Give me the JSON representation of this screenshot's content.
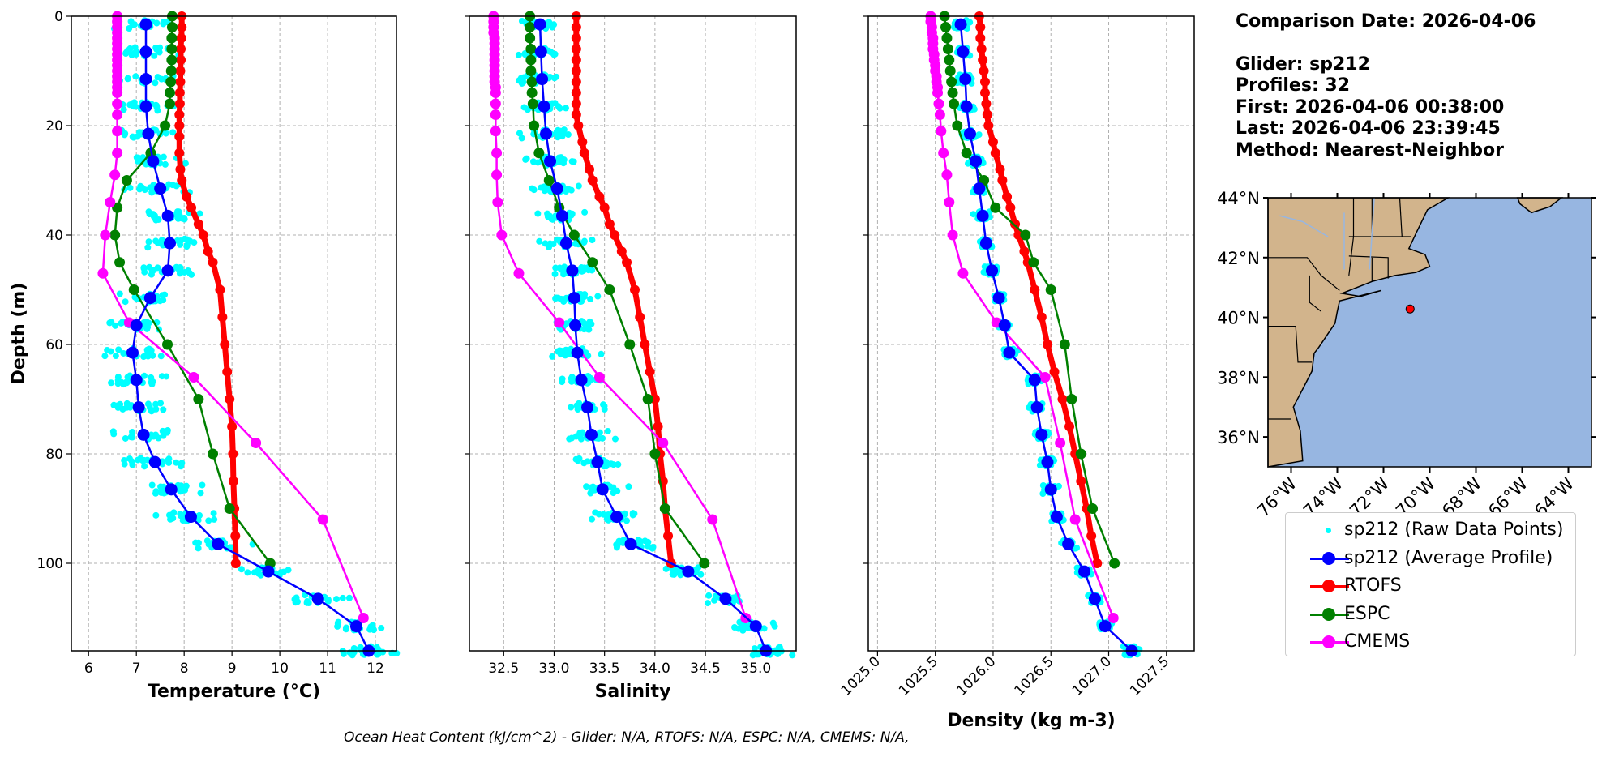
{
  "info": {
    "comparison_date": "Comparison Date: 2026-04-06",
    "glider": "Glider: sp212",
    "profiles": "Profiles: 32",
    "first": "First: 2026-04-06 00:38:00",
    "last": "Last: 2026-04-06 23:39:45",
    "method": "Method: Nearest-Neighbor"
  },
  "footer": "Ocean Heat Content (kJ/cm^2) - Glider: N/A,  RTOFS: N/A,  ESPC: N/A,  CMEMS: N/A,",
  "colors": {
    "raw": "#00ffff",
    "glider": "#0000ff",
    "rtofs": "#ff0000",
    "espc": "#008000",
    "cmems": "#ff00ff",
    "land": "#d2b48c",
    "ocean": "#97b6e1"
  },
  "legend": [
    {
      "key": "raw",
      "label": "sp212 (Raw Data Points)"
    },
    {
      "key": "glider",
      "label": "sp212 (Average Profile)"
    },
    {
      "key": "rtofs",
      "label": "RTOFS"
    },
    {
      "key": "espc",
      "label": "ESPC"
    },
    {
      "key": "cmems",
      "label": "CMEMS"
    }
  ],
  "chart_data": [
    {
      "type": "line",
      "id": "temperature",
      "xlabel": "Temperature (°C)",
      "ylabel": "Depth (m)",
      "xlim": [
        5.64,
        12.44
      ],
      "ylim": [
        116,
        0
      ],
      "xticks": [
        6,
        7,
        8,
        9,
        10,
        11,
        12
      ],
      "yticks": [
        0,
        20,
        40,
        60,
        80,
        100
      ],
      "grid": true,
      "series": [
        {
          "name": "sp212 (Average Profile)",
          "key": "glider",
          "depth": [
            1.5,
            6.5,
            11.5,
            16.5,
            21.5,
            26.5,
            31.5,
            36.5,
            41.5,
            46.5,
            51.5,
            56.5,
            61.5,
            66.5,
            71.5,
            76.5,
            81.5,
            86.5,
            91.5,
            96.5,
            101.5,
            106.5,
            111.5,
            116
          ],
          "values": [
            7.2,
            7.2,
            7.2,
            7.2,
            7.25,
            7.35,
            7.5,
            7.66,
            7.7,
            7.66,
            7.29,
            7.0,
            6.92,
            7.0,
            7.05,
            7.15,
            7.39,
            7.73,
            8.14,
            8.71,
            9.76,
            10.8,
            11.6,
            11.86
          ]
        },
        {
          "name": "RTOFS",
          "key": "rtofs",
          "depth": [
            0,
            2,
            4,
            6,
            8,
            10,
            12,
            14,
            16,
            18,
            20,
            22,
            25,
            28,
            30,
            33,
            35,
            38,
            40,
            43,
            45,
            50,
            55,
            60,
            65,
            70,
            75,
            80,
            85,
            90,
            95,
            100
          ],
          "values": [
            7.95,
            7.95,
            7.94,
            7.93,
            7.93,
            7.92,
            7.92,
            7.91,
            7.91,
            7.9,
            7.9,
            7.9,
            7.9,
            7.92,
            7.95,
            8.05,
            8.15,
            8.3,
            8.4,
            8.5,
            8.6,
            8.75,
            8.8,
            8.85,
            8.9,
            8.95,
            9.0,
            9.02,
            9.03,
            9.05,
            9.07,
            9.08
          ]
        },
        {
          "name": "ESPC",
          "key": "espc",
          "depth": [
            0,
            2,
            4,
            6,
            8,
            10,
            12,
            14,
            16,
            20,
            25,
            30,
            35,
            40,
            45,
            50,
            60,
            70,
            80,
            90,
            100
          ],
          "values": [
            7.75,
            7.75,
            7.74,
            7.74,
            7.74,
            7.73,
            7.72,
            7.7,
            7.7,
            7.6,
            7.3,
            6.8,
            6.6,
            6.55,
            6.65,
            6.95,
            7.65,
            8.3,
            8.6,
            8.95,
            9.8
          ]
        },
        {
          "name": "CMEMS",
          "key": "cmems",
          "depth": [
            0,
            1,
            2,
            3,
            4,
            5,
            6,
            7,
            8,
            9,
            10,
            11,
            12,
            13,
            14,
            16,
            18,
            21,
            25,
            29,
            34,
            40,
            47,
            56,
            66,
            78,
            92,
            110
          ],
          "values": [
            6.6,
            6.6,
            6.6,
            6.6,
            6.6,
            6.6,
            6.6,
            6.6,
            6.6,
            6.6,
            6.6,
            6.6,
            6.6,
            6.6,
            6.6,
            6.6,
            6.6,
            6.6,
            6.6,
            6.55,
            6.45,
            6.35,
            6.3,
            6.85,
            8.2,
            9.5,
            10.9,
            11.75
          ]
        }
      ]
    },
    {
      "type": "line",
      "id": "salinity",
      "xlabel": "Salinity",
      "xlim": [
        32.16,
        35.4
      ],
      "ylim": [
        116,
        0
      ],
      "xticks": [
        32.5,
        33.0,
        33.5,
        34.0,
        34.5,
        35.0
      ],
      "grid": true,
      "series": [
        {
          "name": "sp212 (Average Profile)",
          "key": "glider",
          "depth": [
            1.5,
            6.5,
            11.5,
            16.5,
            21.5,
            26.5,
            31.5,
            36.5,
            41.5,
            46.5,
            51.5,
            56.5,
            61.5,
            66.5,
            71.5,
            76.5,
            81.5,
            86.5,
            91.5,
            96.5,
            101.5,
            106.5,
            111.5,
            116
          ],
          "values": [
            32.86,
            32.87,
            32.88,
            32.9,
            32.92,
            32.96,
            33.03,
            33.08,
            33.12,
            33.18,
            33.2,
            33.21,
            33.23,
            33.27,
            33.33,
            33.37,
            33.43,
            33.48,
            33.62,
            33.76,
            34.33,
            34.7,
            35.0,
            35.1
          ]
        },
        {
          "name": "RTOFS",
          "key": "rtofs",
          "depth": [
            0,
            2,
            4,
            6,
            8,
            10,
            12,
            14,
            16,
            18,
            20,
            23,
            25,
            28,
            30,
            33,
            35,
            38,
            40,
            43,
            45,
            50,
            55,
            60,
            65,
            70,
            75,
            80,
            85,
            90,
            95,
            100
          ],
          "values": [
            33.22,
            33.22,
            33.22,
            33.22,
            33.22,
            33.22,
            33.22,
            33.22,
            33.22,
            33.22,
            33.24,
            33.28,
            33.3,
            33.35,
            33.38,
            33.45,
            33.5,
            33.55,
            33.6,
            33.67,
            33.72,
            33.8,
            33.85,
            33.9,
            33.95,
            34.0,
            34.03,
            34.05,
            34.08,
            34.1,
            34.13,
            34.16
          ]
        },
        {
          "name": "ESPC",
          "key": "espc",
          "depth": [
            0,
            2,
            4,
            6,
            8,
            10,
            12,
            14,
            16,
            20,
            25,
            30,
            35,
            40,
            45,
            50,
            60,
            70,
            80,
            90,
            100
          ],
          "values": [
            32.76,
            32.76,
            32.76,
            32.77,
            32.77,
            32.77,
            32.78,
            32.78,
            32.79,
            32.8,
            32.85,
            32.95,
            33.05,
            33.2,
            33.38,
            33.55,
            33.75,
            33.93,
            34.0,
            34.1,
            34.49
          ]
        },
        {
          "name": "CMEMS",
          "key": "cmems",
          "depth": [
            0,
            1,
            2,
            3,
            4,
            5,
            6,
            7,
            8,
            9,
            10,
            11,
            12,
            13,
            14,
            16,
            18,
            21,
            25,
            29,
            34,
            40,
            47,
            56,
            66,
            78,
            92,
            110
          ],
          "values": [
            32.4,
            32.4,
            32.4,
            32.4,
            32.41,
            32.41,
            32.41,
            32.41,
            32.41,
            32.41,
            32.41,
            32.41,
            32.41,
            32.42,
            32.42,
            32.42,
            32.42,
            32.42,
            32.43,
            32.43,
            32.44,
            32.48,
            32.65,
            33.05,
            33.45,
            34.08,
            34.57,
            34.9
          ]
        }
      ]
    },
    {
      "type": "line",
      "id": "density",
      "xlabel": "Density (kg m-3)",
      "xlim": [
        1024.92,
        1027.74
      ],
      "ylim": [
        116,
        0
      ],
      "xticks": [
        1025.0,
        1025.5,
        1026.0,
        1026.5,
        1027.0,
        1027.5
      ],
      "grid": true,
      "series": [
        {
          "name": "sp212 (Average Profile)",
          "key": "glider",
          "depth": [
            1.5,
            6.5,
            11.5,
            16.5,
            21.5,
            26.5,
            31.5,
            36.5,
            41.5,
            46.5,
            51.5,
            56.5,
            61.5,
            66.5,
            71.5,
            76.5,
            81.5,
            86.5,
            91.5,
            96.5,
            101.5,
            106.5,
            111.5,
            116
          ],
          "values": [
            1025.72,
            1025.74,
            1025.76,
            1025.77,
            1025.8,
            1025.85,
            1025.88,
            1025.91,
            1025.94,
            1025.99,
            1026.05,
            1026.1,
            1026.14,
            1026.36,
            1026.38,
            1026.42,
            1026.47,
            1026.5,
            1026.55,
            1026.65,
            1026.79,
            1026.88,
            1026.97,
            1027.2
          ]
        },
        {
          "name": "RTOFS",
          "key": "rtofs",
          "depth": [
            0,
            2,
            4,
            6,
            8,
            10,
            12,
            14,
            16,
            18,
            20,
            23,
            25,
            28,
            30,
            33,
            35,
            38,
            40,
            43,
            45,
            50,
            55,
            60,
            65,
            70,
            75,
            80,
            85,
            90,
            95,
            100
          ],
          "values": [
            1025.88,
            1025.89,
            1025.89,
            1025.9,
            1025.91,
            1025.92,
            1025.93,
            1025.93,
            1025.94,
            1025.95,
            1025.96,
            1026.0,
            1026.02,
            1026.06,
            1026.08,
            1026.12,
            1026.15,
            1026.19,
            1026.22,
            1026.27,
            1026.3,
            1026.36,
            1026.42,
            1026.47,
            1026.53,
            1026.6,
            1026.66,
            1026.71,
            1026.76,
            1026.81,
            1026.85,
            1026.9
          ]
        },
        {
          "name": "ESPC",
          "key": "espc",
          "depth": [
            0,
            2,
            4,
            6,
            8,
            10,
            12,
            14,
            16,
            20,
            25,
            30,
            35,
            40,
            45,
            50,
            60,
            70,
            80,
            90,
            100
          ],
          "values": [
            1025.58,
            1025.59,
            1025.6,
            1025.61,
            1025.62,
            1025.63,
            1025.64,
            1025.65,
            1025.66,
            1025.69,
            1025.77,
            1025.92,
            1026.02,
            1026.28,
            1026.35,
            1026.5,
            1026.62,
            1026.68,
            1026.76,
            1026.86,
            1027.05
          ]
        },
        {
          "name": "CMEMS",
          "key": "cmems",
          "depth": [
            0,
            1,
            2,
            3,
            4,
            5,
            6,
            7,
            8,
            9,
            10,
            11,
            12,
            13,
            14,
            16,
            18,
            21,
            25,
            29,
            34,
            40,
            47,
            56,
            66,
            78,
            92,
            110
          ],
          "values": [
            1025.46,
            1025.46,
            1025.47,
            1025.47,
            1025.48,
            1025.48,
            1025.48,
            1025.49,
            1025.49,
            1025.5,
            1025.5,
            1025.51,
            1025.51,
            1025.52,
            1025.52,
            1025.53,
            1025.54,
            1025.55,
            1025.57,
            1025.6,
            1025.62,
            1025.65,
            1025.74,
            1026.03,
            1026.45,
            1026.58,
            1026.71,
            1027.04
          ]
        }
      ]
    },
    {
      "type": "scatter",
      "id": "map",
      "title": "Glider location",
      "xlim": [
        -77,
        -63
      ],
      "ylim": [
        35,
        44
      ],
      "xticks": [
        -76,
        -74,
        -72,
        -70,
        -68,
        -66,
        -64
      ],
      "xticklabels": [
        "76°W",
        "74°W",
        "72°W",
        "70°W",
        "68°W",
        "66°W",
        "64°W"
      ],
      "yticks": [
        36,
        38,
        40,
        42,
        44
      ],
      "yticklabels": [
        "36°N",
        "38°N",
        "40°N",
        "42°N",
        "44°N"
      ],
      "points": [
        {
          "lon": -70.85,
          "lat": 40.28
        }
      ]
    }
  ]
}
